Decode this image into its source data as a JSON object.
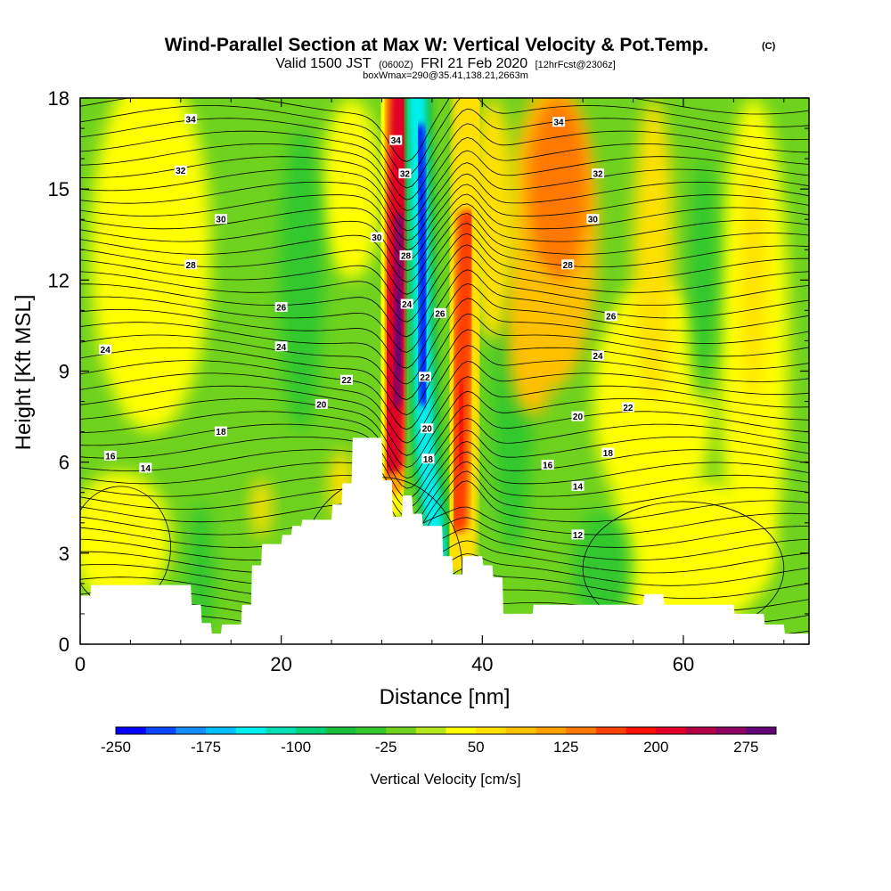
{
  "chart_data": {
    "type": "heatmap",
    "title": "Wind-Parallel Section at Max W: Vertical Velocity & Pot.Temp.",
    "title_mark": "(C)",
    "subtitle_main": "Valid 1500 JST",
    "subtitle_utc": "(0600Z)",
    "subtitle_date": "FRI 21 Feb 2020",
    "subtitle_fcst": "[12hrFcst@2306z]",
    "subtitle_box": "boxWmax=290@35.41,138.21,2663m",
    "xlabel": "Distance [nm]",
    "ylabel": "Height [Kft MSL]",
    "xlim": [
      0,
      72.5
    ],
    "ylim": [
      0,
      18
    ],
    "xticks": [
      0,
      20,
      40,
      60
    ],
    "yticks": [
      0,
      3,
      6,
      9,
      12,
      15,
      18
    ],
    "colorbar": {
      "label": "Vertical Velocity [cm/s]",
      "range": [
        -250,
        300
      ],
      "step": 25,
      "tick_labels": [
        "-250",
        "-175",
        "-100",
        "-25",
        "50",
        "125",
        "200",
        "275"
      ],
      "tick_values": [
        -250,
        -175,
        -100,
        -25,
        50,
        125,
        200,
        275
      ],
      "colors": [
        "#0000ff",
        "#0a46ff",
        "#148cff",
        "#00c0ff",
        "#00f0f0",
        "#00e0b4",
        "#00d278",
        "#19be3c",
        "#32c82d",
        "#6ed21e",
        "#b4e61e",
        "#ffff00",
        "#ffe000",
        "#ffc000",
        "#ffa000",
        "#ff7800",
        "#ff4000",
        "#ff1000",
        "#e00028",
        "#b40046",
        "#8c0064",
        "#640078"
      ]
    },
    "theta_contour_labels": [
      12,
      14,
      16,
      18,
      20,
      22,
      24,
      26,
      28,
      30,
      32,
      34
    ],
    "terrain_profile": {
      "x": [
        0,
        1,
        1.1,
        10,
        11,
        11.1,
        12,
        12.1,
        13,
        13.1,
        14,
        14.1,
        16,
        16.1,
        17,
        17.1,
        18,
        18.1,
        20,
        20.1,
        21,
        21.1,
        22,
        22.1,
        25,
        25.1,
        26,
        26.1,
        27,
        27.1,
        30,
        30.1,
        31,
        31.1,
        32,
        32.1,
        33,
        33.1,
        34,
        34.1,
        36,
        36.1,
        37,
        37.1,
        38,
        38.1,
        40,
        40.1,
        41,
        41.1,
        42,
        42.1,
        45,
        45.1,
        56,
        56.1,
        58,
        58.1,
        62,
        62.1,
        65,
        65.1,
        68,
        68.1,
        70,
        70.1,
        72.5
      ],
      "y": [
        1.6,
        1.6,
        1.95,
        1.95,
        1.95,
        1.3,
        1.3,
        0.7,
        0.7,
        0.35,
        0.35,
        0.65,
        0.65,
        1.3,
        1.3,
        2.6,
        2.6,
        3.3,
        3.3,
        3.6,
        3.6,
        3.9,
        3.9,
        4.1,
        4.1,
        4.6,
        4.6,
        5.3,
        5.3,
        6.8,
        6.8,
        5.4,
        5.4,
        4.2,
        4.2,
        4.9,
        4.9,
        4.3,
        4.3,
        3.9,
        3.9,
        2.9,
        2.9,
        2.3,
        2.3,
        2.9,
        2.9,
        2.6,
        2.6,
        2.2,
        2.2,
        1.0,
        1.0,
        1.3,
        1.3,
        1.65,
        1.65,
        1.3,
        1.3,
        1.3,
        1.3,
        1.0,
        1.0,
        0.65,
        0.65,
        0.35,
        0.35
      ]
    },
    "velocity_features": [
      {
        "name": "updraft-core",
        "x": 31.7,
        "y": 11,
        "value": 290
      },
      {
        "name": "downdraft-core",
        "x": 34.2,
        "y": 12,
        "value": -240
      },
      {
        "name": "updraft-east",
        "x": 37.5,
        "y": 9,
        "value": 175
      },
      {
        "name": "updraft-upper-east",
        "x": 47,
        "y": 15,
        "value": 125
      },
      {
        "name": "sinking-west",
        "x": 21,
        "y": 12,
        "value": -40
      }
    ]
  }
}
